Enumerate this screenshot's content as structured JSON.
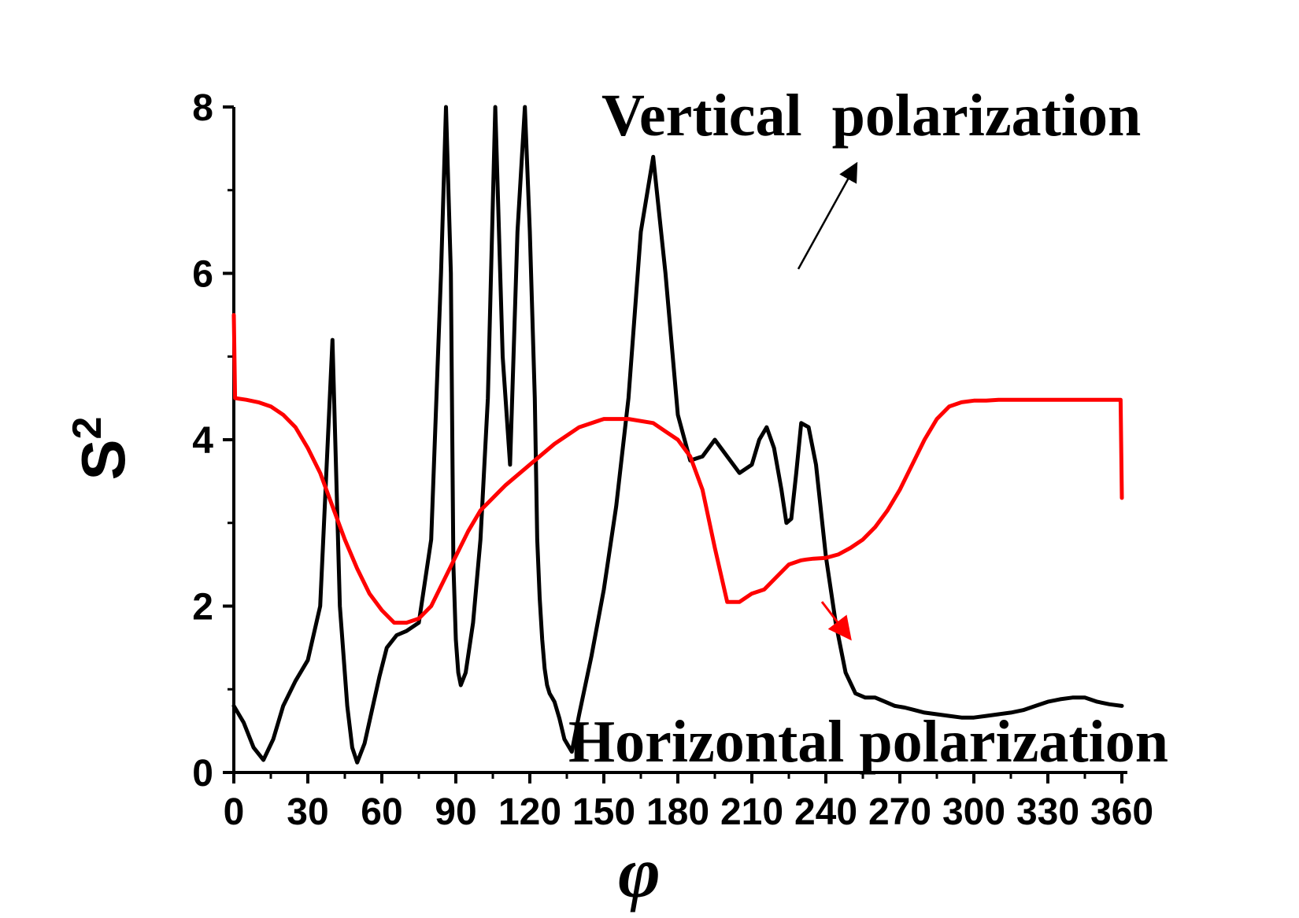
{
  "chart_data": {
    "type": "line",
    "title": "",
    "xlabel": "φ",
    "ylabel": "S",
    "ylabel_superscript": "2",
    "xlim": [
      0,
      360
    ],
    "ylim": [
      0,
      8
    ],
    "x_ticks": [
      0,
      30,
      60,
      90,
      120,
      150,
      180,
      210,
      240,
      270,
      300,
      330,
      360
    ],
    "y_ticks": [
      0,
      2,
      4,
      6,
      8
    ],
    "grid": false,
    "legend": "none",
    "series": [
      {
        "color": "#000000",
        "x": [
          0,
          4,
          8,
          12,
          16,
          20,
          25,
          30,
          35,
          40,
          43,
          46,
          48,
          50,
          53,
          56,
          59,
          62,
          66,
          70,
          75,
          80,
          84,
          86,
          88,
          89,
          90,
          91,
          92,
          94,
          97,
          100,
          103,
          106,
          109,
          112,
          115,
          118,
          120,
          122,
          123,
          124,
          125,
          126,
          127,
          128,
          129,
          130,
          132,
          134,
          137,
          140,
          145,
          150,
          155,
          160,
          165,
          170,
          175,
          180,
          185,
          190,
          195,
          200,
          205,
          210,
          213,
          216,
          219,
          222,
          224,
          226,
          228,
          230,
          233,
          236,
          240,
          244,
          248,
          252,
          256,
          260,
          264,
          268,
          272,
          276,
          280,
          285,
          290,
          295,
          300,
          305,
          310,
          315,
          320,
          325,
          330,
          335,
          340,
          345,
          350,
          355,
          360
        ],
        "y": [
          0.8,
          0.6,
          0.3,
          0.15,
          0.4,
          0.8,
          1.1,
          1.35,
          2.0,
          5.2,
          2.0,
          0.8,
          0.3,
          0.12,
          0.35,
          0.75,
          1.15,
          1.5,
          1.65,
          1.7,
          1.8,
          2.8,
          6.0,
          8.0,
          6.0,
          2.5,
          1.6,
          1.2,
          1.05,
          1.2,
          1.8,
          2.8,
          4.5,
          8.0,
          5.0,
          3.7,
          6.5,
          8.0,
          6.5,
          4.5,
          2.8,
          2.1,
          1.6,
          1.25,
          1.05,
          0.95,
          0.9,
          0.85,
          0.65,
          0.4,
          0.25,
          0.7,
          1.4,
          2.2,
          3.2,
          4.5,
          6.5,
          7.4,
          6.0,
          4.3,
          3.75,
          3.8,
          4.0,
          3.8,
          3.6,
          3.7,
          4.0,
          4.15,
          3.9,
          3.4,
          3.0,
          3.05,
          3.6,
          4.2,
          4.15,
          3.7,
          2.6,
          1.8,
          1.2,
          0.95,
          0.9,
          0.9,
          0.85,
          0.8,
          0.78,
          0.75,
          0.72,
          0.7,
          0.68,
          0.66,
          0.66,
          0.68,
          0.7,
          0.72,
          0.75,
          0.8,
          0.85,
          0.88,
          0.9,
          0.9,
          0.85,
          0.82,
          0.8
        ]
      },
      {
        "color": "#ff0000",
        "x": [
          0,
          0.5,
          5,
          10,
          15,
          20,
          25,
          30,
          35,
          40,
          45,
          50,
          55,
          60,
          65,
          70,
          75,
          80,
          85,
          90,
          95,
          100,
          110,
          120,
          130,
          140,
          150,
          160,
          170,
          175,
          180,
          185,
          190,
          195,
          200,
          205,
          210,
          215,
          220,
          225,
          230,
          232,
          235,
          240,
          245,
          250,
          255,
          260,
          265,
          270,
          275,
          280,
          285,
          290,
          295,
          300,
          305,
          310,
          315,
          320,
          325,
          330,
          335,
          340,
          345,
          350,
          355,
          359.5,
          360
        ],
        "y": [
          5.5,
          4.5,
          4.48,
          4.45,
          4.4,
          4.3,
          4.15,
          3.9,
          3.6,
          3.2,
          2.8,
          2.45,
          2.15,
          1.95,
          1.8,
          1.8,
          1.85,
          2.0,
          2.3,
          2.6,
          2.9,
          3.15,
          3.45,
          3.7,
          3.95,
          4.15,
          4.25,
          4.25,
          4.2,
          4.1,
          4.0,
          3.8,
          3.4,
          2.7,
          2.05,
          2.05,
          2.15,
          2.2,
          2.35,
          2.5,
          2.55,
          2.56,
          2.57,
          2.58,
          2.62,
          2.7,
          2.8,
          2.95,
          3.15,
          3.4,
          3.7,
          4.0,
          4.25,
          4.4,
          4.45,
          4.47,
          4.47,
          4.48,
          4.48,
          4.48,
          4.48,
          4.48,
          4.48,
          4.48,
          4.48,
          4.48,
          4.48,
          4.48,
          3.3
        ]
      }
    ],
    "annotations": [
      {
        "text": "Vertical  polarization"
      },
      {
        "text": "Horizontal polarization"
      }
    ]
  }
}
